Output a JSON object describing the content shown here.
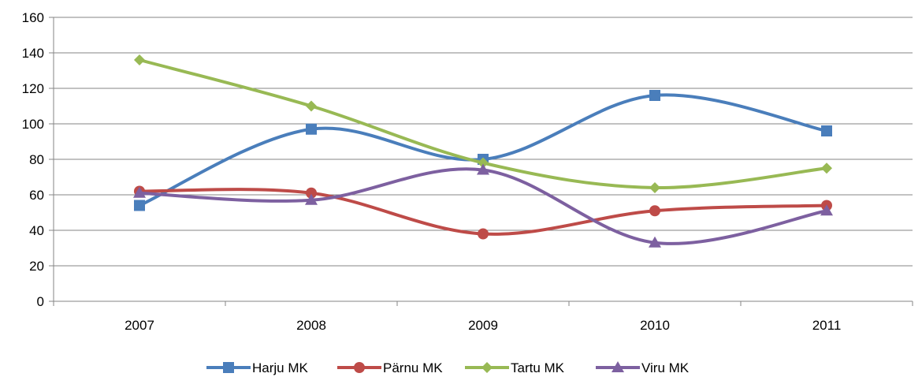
{
  "chart_data": {
    "type": "line",
    "title": "",
    "xlabel": "",
    "ylabel": "",
    "categories": [
      "2007",
      "2008",
      "2009",
      "2010",
      "2011"
    ],
    "ylim": [
      0,
      160
    ],
    "yticks": [
      "0",
      "20",
      "40",
      "60",
      "80",
      "100",
      "120",
      "140",
      "160"
    ],
    "grid": "horizontal",
    "legend_position": "bottom",
    "smooth": true,
    "series": [
      {
        "name": "Harju MK",
        "values": [
          54,
          97,
          80,
          116,
          96
        ],
        "color": "#4a7ebb",
        "marker": "square"
      },
      {
        "name": "Pärnu MK",
        "values": [
          62,
          61,
          38,
          51,
          54
        ],
        "color": "#be4b48",
        "marker": "circle"
      },
      {
        "name": "Tartu MK",
        "values": [
          136,
          110,
          78,
          64,
          75
        ],
        "color": "#98b954",
        "marker": "diamond"
      },
      {
        "name": "Viru MK",
        "values": [
          61,
          57,
          74,
          33,
          51
        ],
        "color": "#7d60a0",
        "marker": "triangle"
      }
    ]
  }
}
